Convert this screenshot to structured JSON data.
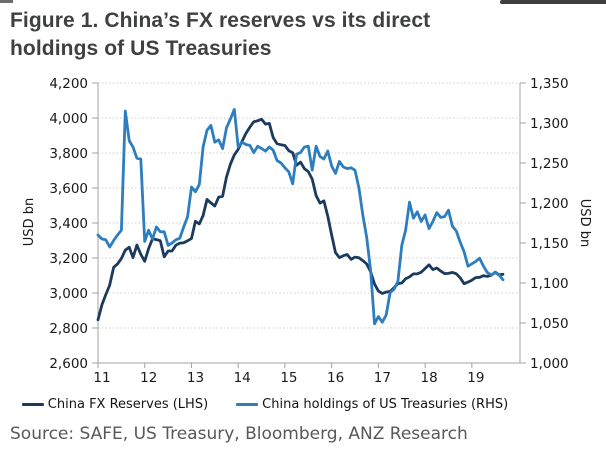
{
  "title_lines": [
    "Figure 1. China’s FX reserves vs its direct",
    "holdings of US Treasuries"
  ],
  "source": "Source: SAFE, US Treasury, Bloomberg, ANZ Research",
  "colors": {
    "fx_reserves_line": "#1b3a5c",
    "treasuries_line": "#2e7dbf",
    "gridline": "#cfcfcf",
    "axis": "#a3a3a3",
    "title_text": "#3f4040",
    "source_text": "#58585a"
  },
  "chart_data": {
    "type": "line",
    "title": "Figure 1. China’s FX reserves vs its direct holdings of US Treasuries",
    "grid": "horizontal dotted",
    "legend_position": "bottom",
    "x_axis": {
      "ticks": [
        "11",
        "12",
        "13",
        "14",
        "15",
        "16",
        "17",
        "18",
        "19"
      ],
      "start": "2010-12",
      "end": "2019-08",
      "frequency": "monthly"
    },
    "y_axis_left": {
      "label": "USD bn",
      "min": 2600,
      "max": 4200,
      "step": 200,
      "ticks": [
        "2,600",
        "2,800",
        "3,000",
        "3,200",
        "3,400",
        "3,600",
        "3,800",
        "4,000",
        "4,200"
      ]
    },
    "y_axis_right": {
      "label": "USD bn",
      "min": 1000,
      "max": 1350,
      "step": 50,
      "ticks": [
        "1,000",
        "1,050",
        "1,100",
        "1,150",
        "1,200",
        "1,250",
        "1,300",
        "1,350"
      ]
    },
    "series": [
      {
        "name": "China FX Reserves (LHS)",
        "axis": "left",
        "color": "#1b3a5c",
        "values": [
          2847,
          2932,
          2991,
          3045,
          3146,
          3166,
          3197,
          3245,
          3262,
          3202,
          3274,
          3221,
          3181,
          3254,
          3310,
          3305,
          3299,
          3207,
          3240,
          3240,
          3273,
          3285,
          3287,
          3298,
          3312,
          3410,
          3395,
          3443,
          3535,
          3515,
          3497,
          3548,
          3553,
          3663,
          3736,
          3789,
          3821,
          3867,
          3913,
          3948,
          3979,
          3984,
          3993,
          3965,
          3969,
          3888,
          3853,
          3847,
          3843,
          3813,
          3802,
          3730,
          3748,
          3711,
          3694,
          3651,
          3557,
          3514,
          3526,
          3438,
          3330,
          3231,
          3202,
          3213,
          3220,
          3192,
          3205,
          3201,
          3185,
          3166,
          3121,
          3052,
          3011,
          2998,
          3005,
          3009,
          3030,
          3054,
          3057,
          3081,
          3092,
          3109,
          3109,
          3119,
          3140,
          3161,
          3134,
          3143,
          3125,
          3111,
          3112,
          3118,
          3110,
          3087,
          3053,
          3062,
          3073,
          3088,
          3090,
          3099,
          3095,
          3101,
          3119,
          3104,
          3107
        ]
      },
      {
        "name": "China holdings of US Treasuries (RHS)",
        "axis": "right",
        "color": "#2e7dbf",
        "values": [
          1160,
          1155,
          1154,
          1145,
          1153,
          1160,
          1166,
          1315,
          1278,
          1270,
          1256,
          1255,
          1152,
          1166,
          1155,
          1170,
          1164,
          1164,
          1147,
          1150,
          1154,
          1156,
          1170,
          1183,
          1220,
          1214,
          1223,
          1270,
          1291,
          1297,
          1276,
          1279,
          1268,
          1294,
          1305,
          1317,
          1270,
          1276,
          1273,
          1272,
          1263,
          1271,
          1268,
          1265,
          1270,
          1266,
          1253,
          1250,
          1244,
          1239,
          1224,
          1261,
          1263,
          1270,
          1271,
          1241,
          1271,
          1258,
          1255,
          1265,
          1246,
          1237,
          1252,
          1245,
          1243,
          1244,
          1241,
          1219,
          1185,
          1157,
          1116,
          1049,
          1058,
          1051,
          1060,
          1088,
          1092,
          1102,
          1147,
          1166,
          1201,
          1181,
          1189,
          1177,
          1185,
          1168,
          1177,
          1188,
          1182,
          1183,
          1191,
          1171,
          1165,
          1151,
          1139,
          1121,
          1124,
          1127,
          1131,
          1121,
          1113,
          1110,
          1113,
          1110,
          1104
        ]
      }
    ]
  }
}
